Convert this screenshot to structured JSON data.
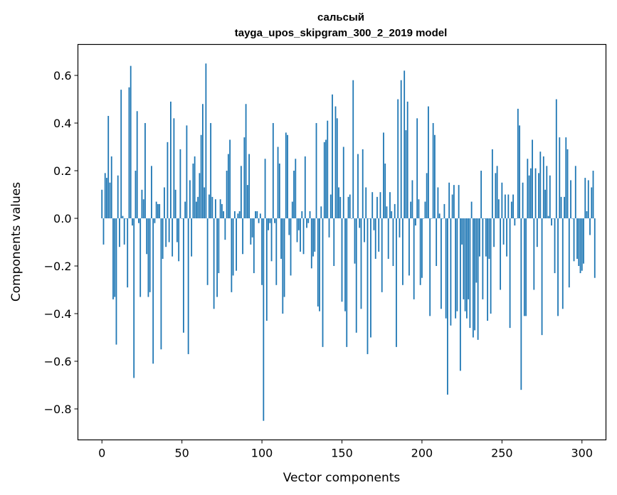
{
  "chart_data": {
    "type": "bar",
    "title_line1": "сальсый",
    "title_line2": "tayga_upos_skipgram_300_2_2019 model",
    "xlabel": "Vector components",
    "ylabel": "Components values",
    "xlim": [
      -15,
      315
    ],
    "ylim": [
      -0.93,
      0.73
    ],
    "xticks": [
      0,
      50,
      100,
      150,
      200,
      250,
      300
    ],
    "xtick_labels": [
      "0",
      "50",
      "100",
      "150",
      "200",
      "250",
      "300"
    ],
    "yticks": [
      -0.8,
      -0.6,
      -0.4,
      -0.2,
      0.0,
      0.2,
      0.4,
      0.6
    ],
    "ytick_labels": [
      "−0.8",
      "−0.6",
      "−0.4",
      "−0.2",
      "0.0",
      "0.2",
      "0.4",
      "0.6"
    ],
    "color": "#1f77b4",
    "values": [
      0.12,
      -0.11,
      0.19,
      0.17,
      0.43,
      0.15,
      0.26,
      -0.34,
      -0.33,
      -0.53,
      0.18,
      -0.12,
      0.54,
      0.01,
      -0.11,
      0.0,
      -0.29,
      0.55,
      0.64,
      -0.03,
      -0.67,
      0.2,
      0.45,
      -0.02,
      -0.33,
      0.12,
      0.08,
      0.4,
      -0.15,
      -0.33,
      -0.31,
      0.22,
      -0.61,
      -0.02,
      0.07,
      0.06,
      0.06,
      -0.55,
      -0.17,
      0.13,
      -0.12,
      0.32,
      -0.1,
      0.49,
      -0.16,
      0.42,
      0.12,
      -0.1,
      -0.18,
      0.29,
      0.0,
      -0.48,
      0.07,
      0.39,
      -0.57,
      0.16,
      -0.16,
      0.23,
      0.26,
      0.07,
      0.09,
      0.19,
      0.35,
      0.48,
      0.13,
      0.65,
      -0.28,
      0.1,
      0.4,
      0.09,
      -0.38,
      0.08,
      -0.33,
      -0.23,
      0.08,
      0.06,
      0.03,
      -0.09,
      0.2,
      0.27,
      0.33,
      -0.31,
      -0.24,
      0.03,
      -0.22,
      0.02,
      0.03,
      0.22,
      -0.15,
      0.34,
      0.48,
      0.14,
      0.27,
      -0.11,
      -0.08,
      -0.23,
      0.03,
      0.03,
      -0.02,
      0.02,
      -0.28,
      -0.85,
      0.25,
      -0.43,
      -0.05,
      -0.02,
      -0.18,
      0.4,
      -0.02,
      -0.28,
      0.3,
      0.23,
      -0.17,
      -0.4,
      -0.33,
      0.36,
      0.35,
      -0.07,
      -0.24,
      0.07,
      0.2,
      0.25,
      -0.1,
      -0.05,
      -0.14,
      0.03,
      -0.15,
      0.26,
      -0.04,
      -0.02,
      0.03,
      -0.21,
      -0.16,
      -0.14,
      0.4,
      -0.37,
      -0.39,
      0.05,
      -0.54,
      0.32,
      0.33,
      0.41,
      -0.08,
      0.1,
      0.52,
      -0.2,
      0.47,
      0.42,
      0.13,
      0.09,
      -0.35,
      0.3,
      -0.39,
      -0.54,
      0.09,
      0.1,
      0.0,
      0.58,
      -0.19,
      -0.48,
      0.27,
      -0.04,
      -0.38,
      0.29,
      -0.1,
      0.13,
      -0.57,
      0.0,
      -0.5,
      0.11,
      -0.05,
      -0.17,
      0.09,
      -0.14,
      0.11,
      -0.31,
      0.36,
      0.23,
      0.05,
      -0.17,
      0.11,
      0.03,
      -0.2,
      0.06,
      -0.54,
      0.5,
      -0.08,
      0.58,
      -0.28,
      0.62,
      0.37,
      0.49,
      -0.24,
      0.07,
      0.16,
      -0.34,
      -0.03,
      0.42,
      0.08,
      -0.28,
      -0.25,
      0.0,
      0.07,
      0.19,
      0.47,
      -0.41,
      0.0,
      0.4,
      0.35,
      -0.2,
      0.13,
      0.02,
      -0.38,
      0.0,
      0.06,
      -0.42,
      -0.74,
      0.15,
      -0.45,
      0.1,
      0.14,
      -0.42,
      -0.39,
      0.14,
      -0.64,
      -0.11,
      -0.34,
      -0.39,
      -0.42,
      -0.34,
      -0.46,
      0.07,
      -0.5,
      -0.47,
      -0.27,
      -0.51,
      -0.16,
      0.2,
      -0.34,
      0.0,
      -0.16,
      -0.43,
      -0.17,
      -0.4,
      0.29,
      -0.12,
      0.19,
      0.22,
      0.08,
      -0.3,
      0.15,
      -0.11,
      0.1,
      -0.16,
      0.1,
      -0.46,
      0.07,
      0.1,
      -0.03,
      0.0,
      0.46,
      0.39,
      -0.72,
      0.15,
      -0.41,
      -0.41,
      0.25,
      0.18,
      0.21,
      0.33,
      -0.3,
      0.21,
      -0.12,
      0.19,
      0.28,
      -0.49,
      0.26,
      0.12,
      0.22,
      0.01,
      0.18,
      -0.03,
      0.0,
      -0.23,
      0.5,
      -0.41,
      0.34,
      0.09,
      -0.38,
      0.09,
      0.34,
      0.29,
      -0.29,
      0.16,
      0.0,
      -0.18,
      0.22,
      -0.17,
      -0.2,
      -0.23,
      -0.22,
      -0.19,
      0.17,
      0.03,
      0.16,
      -0.07,
      0.13,
      0.2,
      -0.25
    ]
  }
}
